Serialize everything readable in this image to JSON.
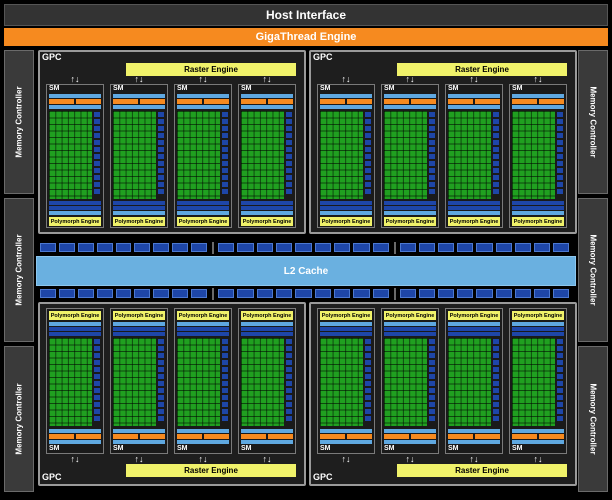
{
  "header": {
    "host_interface": "Host Interface",
    "gigathread": "GigaThread Engine"
  },
  "memory_controller_label": "Memory Controller",
  "gpc": {
    "label": "GPC",
    "raster_engine": "Raster Engine",
    "polymorph_engine": "Polymorph Engine",
    "sm_label": "SM",
    "arrows": "↑↓"
  },
  "l2_cache": "L2 Cache",
  "colors": {
    "host_bg": "#333333",
    "gigathread": "#f68a1f",
    "raster": "#f0f26a",
    "cores": "#20a020",
    "l2": "#6ab0e0",
    "units": "#1e46a8"
  }
}
